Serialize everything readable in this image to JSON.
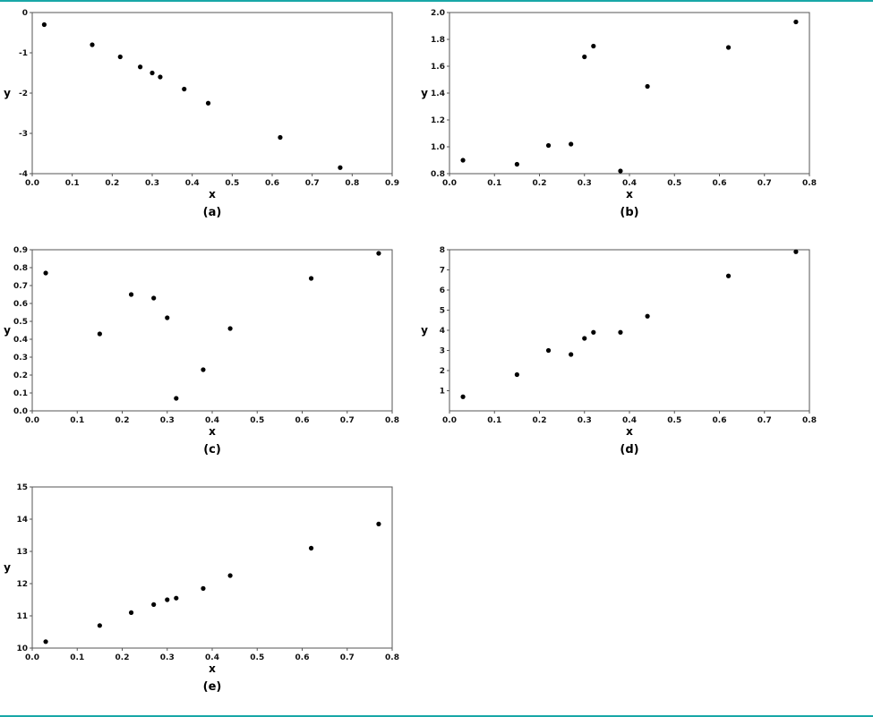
{
  "page": {
    "accent_color": "#18a7a7"
  },
  "chart_data": [
    {
      "type": "scatter",
      "caption": "(a)",
      "xlabel": "x",
      "ylabel": "y",
      "xlim": [
        0.0,
        0.9
      ],
      "ylim": [
        -4,
        0
      ],
      "grid": false,
      "legend": null,
      "marker_color": "#000000",
      "x_ticks": [
        [
          0,
          "0.0"
        ],
        [
          0.1,
          "0.1"
        ],
        [
          0.2,
          "0.2"
        ],
        [
          0.3,
          "0.3"
        ],
        [
          0.4,
          "0.4"
        ],
        [
          0.5,
          "0.5"
        ],
        [
          0.6,
          "0.6"
        ],
        [
          0.7,
          "0.7"
        ],
        [
          0.8,
          "0.8"
        ],
        [
          0.9,
          "0.9"
        ]
      ],
      "y_ticks": [
        [
          0,
          "0"
        ],
        [
          -1,
          "-1"
        ],
        [
          -2,
          "-2"
        ],
        [
          -3,
          "-3"
        ],
        [
          -4,
          "-4"
        ]
      ],
      "points": [
        [
          0.03,
          -0.3
        ],
        [
          0.15,
          -0.8
        ],
        [
          0.22,
          -1.1
        ],
        [
          0.27,
          -1.35
        ],
        [
          0.3,
          -1.5
        ],
        [
          0.32,
          -1.6
        ],
        [
          0.38,
          -1.9
        ],
        [
          0.44,
          -2.25
        ],
        [
          0.62,
          -3.1
        ],
        [
          0.77,
          -3.85
        ]
      ]
    },
    {
      "type": "scatter",
      "caption": "(b)",
      "xlabel": "x",
      "ylabel": "y",
      "xlim": [
        0.0,
        0.8
      ],
      "ylim": [
        0.8,
        2.0
      ],
      "grid": false,
      "legend": null,
      "marker_color": "#000000",
      "x_ticks": [
        [
          0,
          "0.0"
        ],
        [
          0.1,
          "0.1"
        ],
        [
          0.2,
          "0.2"
        ],
        [
          0.3,
          "0.3"
        ],
        [
          0.4,
          "0.4"
        ],
        [
          0.5,
          "0.5"
        ],
        [
          0.6,
          "0.6"
        ],
        [
          0.7,
          "0.7"
        ],
        [
          0.8,
          "0.8"
        ]
      ],
      "y_ticks": [
        [
          0.8,
          "0.8"
        ],
        [
          1.0,
          "1.0"
        ],
        [
          1.2,
          "1.2"
        ],
        [
          1.4,
          "1.4"
        ],
        [
          1.6,
          "1.6"
        ],
        [
          1.8,
          "1.8"
        ],
        [
          2.0,
          "2.0"
        ]
      ],
      "points": [
        [
          0.03,
          0.9
        ],
        [
          0.15,
          0.87
        ],
        [
          0.22,
          1.01
        ],
        [
          0.27,
          1.02
        ],
        [
          0.3,
          1.67
        ],
        [
          0.32,
          1.75
        ],
        [
          0.38,
          0.82
        ],
        [
          0.44,
          1.45
        ],
        [
          0.62,
          1.74
        ],
        [
          0.77,
          1.93
        ]
      ]
    },
    {
      "type": "scatter",
      "caption": "(c)",
      "xlabel": "x",
      "ylabel": "y",
      "xlim": [
        0.0,
        0.8
      ],
      "ylim": [
        0.0,
        0.9
      ],
      "grid": false,
      "legend": null,
      "marker_color": "#000000",
      "x_ticks": [
        [
          0,
          "0.0"
        ],
        [
          0.1,
          "0.1"
        ],
        [
          0.2,
          "0.2"
        ],
        [
          0.3,
          "0.3"
        ],
        [
          0.4,
          "0.4"
        ],
        [
          0.5,
          "0.5"
        ],
        [
          0.6,
          "0.6"
        ],
        [
          0.7,
          "0.7"
        ],
        [
          0.8,
          "0.8"
        ]
      ],
      "y_ticks": [
        [
          0,
          "0.0"
        ],
        [
          0.1,
          "0.1"
        ],
        [
          0.2,
          "0.2"
        ],
        [
          0.3,
          "0.3"
        ],
        [
          0.4,
          "0.4"
        ],
        [
          0.5,
          "0.5"
        ],
        [
          0.6,
          "0.6"
        ],
        [
          0.7,
          "0.7"
        ],
        [
          0.8,
          "0.8"
        ],
        [
          0.9,
          "0.9"
        ]
      ],
      "points": [
        [
          0.03,
          0.77
        ],
        [
          0.15,
          0.43
        ],
        [
          0.22,
          0.65
        ],
        [
          0.27,
          0.63
        ],
        [
          0.3,
          0.52
        ],
        [
          0.32,
          0.07
        ],
        [
          0.38,
          0.23
        ],
        [
          0.44,
          0.46
        ],
        [
          0.62,
          0.74
        ],
        [
          0.77,
          0.88
        ]
      ]
    },
    {
      "type": "scatter",
      "caption": "(d)",
      "xlabel": "x",
      "ylabel": "y",
      "xlim": [
        0.0,
        0.8
      ],
      "ylim": [
        0,
        8
      ],
      "grid": false,
      "legend": null,
      "marker_color": "#000000",
      "x_ticks": [
        [
          0,
          "0.0"
        ],
        [
          0.1,
          "0.1"
        ],
        [
          0.2,
          "0.2"
        ],
        [
          0.3,
          "0.3"
        ],
        [
          0.4,
          "0.4"
        ],
        [
          0.5,
          "0.5"
        ],
        [
          0.6,
          "0.6"
        ],
        [
          0.7,
          "0.7"
        ],
        [
          0.8,
          "0.8"
        ]
      ],
      "y_ticks": [
        [
          1,
          "1"
        ],
        [
          2,
          "2"
        ],
        [
          3,
          "3"
        ],
        [
          4,
          "4"
        ],
        [
          5,
          "5"
        ],
        [
          6,
          "6"
        ],
        [
          7,
          "7"
        ],
        [
          8,
          "8"
        ]
      ],
      "points": [
        [
          0.03,
          0.7
        ],
        [
          0.15,
          1.8
        ],
        [
          0.22,
          3.0
        ],
        [
          0.27,
          2.8
        ],
        [
          0.3,
          3.6
        ],
        [
          0.32,
          3.9
        ],
        [
          0.38,
          3.9
        ],
        [
          0.44,
          4.7
        ],
        [
          0.62,
          6.7
        ],
        [
          0.77,
          7.9
        ]
      ]
    },
    {
      "type": "scatter",
      "caption": "(e)",
      "xlabel": "x",
      "ylabel": "y",
      "xlim": [
        0.0,
        0.8
      ],
      "ylim": [
        10,
        15
      ],
      "grid": false,
      "legend": null,
      "marker_color": "#000000",
      "x_ticks": [
        [
          0,
          "0.0"
        ],
        [
          0.1,
          "0.1"
        ],
        [
          0.2,
          "0.2"
        ],
        [
          0.3,
          "0.3"
        ],
        [
          0.4,
          "0.4"
        ],
        [
          0.5,
          "0.5"
        ],
        [
          0.6,
          "0.6"
        ],
        [
          0.7,
          "0.7"
        ],
        [
          0.8,
          "0.8"
        ]
      ],
      "y_ticks": [
        [
          10,
          "10"
        ],
        [
          11,
          "11"
        ],
        [
          12,
          "12"
        ],
        [
          13,
          "13"
        ],
        [
          14,
          "14"
        ],
        [
          15,
          "15"
        ]
      ],
      "points": [
        [
          0.03,
          10.2
        ],
        [
          0.15,
          10.7
        ],
        [
          0.22,
          11.1
        ],
        [
          0.27,
          11.35
        ],
        [
          0.3,
          11.5
        ],
        [
          0.32,
          11.55
        ],
        [
          0.38,
          11.85
        ],
        [
          0.44,
          12.25
        ],
        [
          0.62,
          13.1
        ],
        [
          0.77,
          13.85
        ]
      ]
    }
  ]
}
